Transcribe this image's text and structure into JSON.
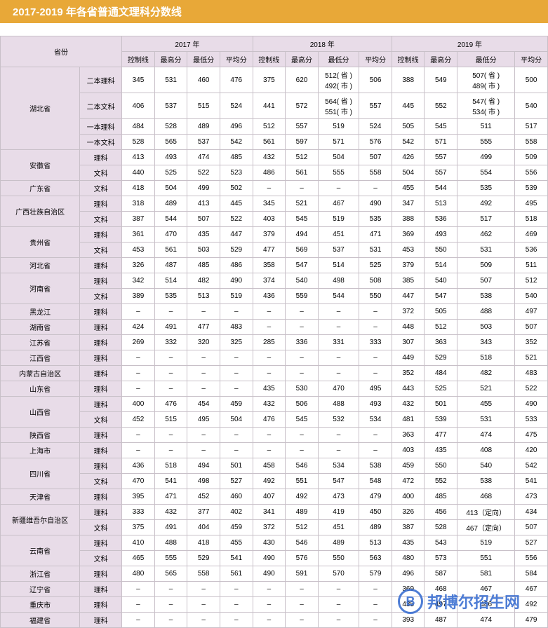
{
  "title": "2017-2019 年各省普通文理科分数线",
  "colors": {
    "header_bg": "#e8a838",
    "header_fg": "#ffffff",
    "th_bg": "#e8dce8",
    "border": "#c8c0c8",
    "watermark": "#3b6fd1"
  },
  "watermark": {
    "logo": "B",
    "text": "邦博尔招生网"
  },
  "table": {
    "year_groups": [
      "2017 年",
      "2018 年",
      "2019 年"
    ],
    "metric_cols": [
      "控制线",
      "最高分",
      "最低分",
      "平均分"
    ],
    "province_label": "省份",
    "provinces": [
      {
        "name": "湖北省",
        "rows": [
          {
            "cat": "二本理科",
            "v": [
              "345",
              "531",
              "460",
              "476",
              "375",
              "620",
              "512( 省 )\n492( 市 )",
              "506",
              "388",
              "549",
              "507( 省 )\n489( 市 )",
              "500"
            ]
          },
          {
            "cat": "二本文科",
            "v": [
              "406",
              "537",
              "515",
              "524",
              "441",
              "572",
              "564( 省 )\n551( 市 )",
              "557",
              "445",
              "552",
              "547( 省 )\n534( 市 )",
              "540"
            ]
          },
          {
            "cat": "一本理科",
            "v": [
              "484",
              "528",
              "489",
              "496",
              "512",
              "557",
              "519",
              "524",
              "505",
              "545",
              "511",
              "517"
            ]
          },
          {
            "cat": "一本文科",
            "v": [
              "528",
              "565",
              "537",
              "542",
              "561",
              "597",
              "571",
              "576",
              "542",
              "571",
              "555",
              "558"
            ]
          }
        ]
      },
      {
        "name": "安徽省",
        "rows": [
          {
            "cat": "理科",
            "v": [
              "413",
              "493",
              "474",
              "485",
              "432",
              "512",
              "504",
              "507",
              "426",
              "557",
              "499",
              "509"
            ]
          },
          {
            "cat": "文科",
            "v": [
              "440",
              "525",
              "522",
              "523",
              "486",
              "561",
              "555",
              "558",
              "504",
              "557",
              "554",
              "556"
            ]
          }
        ]
      },
      {
        "name": "广东省",
        "rows": [
          {
            "cat": "文科",
            "v": [
              "418",
              "504",
              "499",
              "502",
              "–",
              "–",
              "–",
              "–",
              "455",
              "544",
              "535",
              "539"
            ]
          }
        ]
      },
      {
        "name": "广西壮族自治区",
        "rows": [
          {
            "cat": "理科",
            "v": [
              "318",
              "489",
              "413",
              "445",
              "345",
              "521",
              "467",
              "490",
              "347",
              "513",
              "492",
              "495"
            ]
          },
          {
            "cat": "文科",
            "v": [
              "387",
              "544",
              "507",
              "522",
              "403",
              "545",
              "519",
              "535",
              "388",
              "536",
              "517",
              "518"
            ]
          }
        ]
      },
      {
        "name": "贵州省",
        "rows": [
          {
            "cat": "理科",
            "v": [
              "361",
              "470",
              "435",
              "447",
              "379",
              "494",
              "451",
              "471",
              "369",
              "493",
              "462",
              "469"
            ]
          },
          {
            "cat": "文科",
            "v": [
              "453",
              "561",
              "503",
              "529",
              "477",
              "569",
              "537",
              "531",
              "453",
              "550",
              "531",
              "536"
            ]
          }
        ]
      },
      {
        "name": "河北省",
        "rows": [
          {
            "cat": "理科",
            "v": [
              "326",
              "487",
              "485",
              "486",
              "358",
              "547",
              "514",
              "525",
              "379",
              "514",
              "509",
              "511"
            ]
          }
        ]
      },
      {
        "name": "河南省",
        "rows": [
          {
            "cat": "理科",
            "v": [
              "342",
              "514",
              "482",
              "490",
              "374",
              "540",
              "498",
              "508",
              "385",
              "540",
              "507",
              "512"
            ]
          },
          {
            "cat": "文科",
            "v": [
              "389",
              "535",
              "513",
              "519",
              "436",
              "559",
              "544",
              "550",
              "447",
              "547",
              "538",
              "540"
            ]
          }
        ]
      },
      {
        "name": "黑龙江",
        "rows": [
          {
            "cat": "理科",
            "v": [
              "–",
              "–",
              "–",
              "–",
              "–",
              "–",
              "–",
              "–",
              "372",
              "505",
              "488",
              "497"
            ]
          }
        ]
      },
      {
        "name": "湖南省",
        "rows": [
          {
            "cat": "理科",
            "v": [
              "424",
              "491",
              "477",
              "483",
              "–",
              "–",
              "–",
              "–",
              "448",
              "512",
              "503",
              "507"
            ]
          }
        ]
      },
      {
        "name": "江苏省",
        "rows": [
          {
            "cat": "理科",
            "v": [
              "269",
              "332",
              "320",
              "325",
              "285",
              "336",
              "331",
              "333",
              "307",
              "363",
              "343",
              "352"
            ]
          }
        ]
      },
      {
        "name": "江西省",
        "rows": [
          {
            "cat": "理科",
            "v": [
              "–",
              "–",
              "–",
              "–",
              "–",
              "–",
              "–",
              "–",
              "449",
              "529",
              "518",
              "521"
            ]
          }
        ]
      },
      {
        "name": "内蒙古自治区",
        "rows": [
          {
            "cat": "理科",
            "v": [
              "–",
              "–",
              "–",
              "–",
              "–",
              "–",
              "–",
              "–",
              "352",
              "484",
              "482",
              "483"
            ]
          }
        ]
      },
      {
        "name": "山东省",
        "rows": [
          {
            "cat": "理科",
            "v": [
              "–",
              "–",
              "–",
              "–",
              "435",
              "530",
              "470",
              "495",
              "443",
              "525",
              "521",
              "522"
            ]
          }
        ]
      },
      {
        "name": "山西省",
        "rows": [
          {
            "cat": "理科",
            "v": [
              "400",
              "476",
              "454",
              "459",
              "432",
              "506",
              "488",
              "493",
              "432",
              "501",
              "455",
              "490"
            ]
          },
          {
            "cat": "文科",
            "v": [
              "452",
              "515",
              "495",
              "504",
              "476",
              "545",
              "532",
              "534",
              "481",
              "539",
              "531",
              "533"
            ]
          }
        ]
      },
      {
        "name": "陕西省",
        "rows": [
          {
            "cat": "理科",
            "v": [
              "–",
              "–",
              "–",
              "–",
              "–",
              "–",
              "–",
              "–",
              "363",
              "477",
              "474",
              "475"
            ]
          }
        ]
      },
      {
        "name": "上海市",
        "rows": [
          {
            "cat": "理科",
            "v": [
              "–",
              "–",
              "–",
              "–",
              "–",
              "–",
              "–",
              "–",
              "403",
              "435",
              "408",
              "420"
            ]
          }
        ]
      },
      {
        "name": "四川省",
        "rows": [
          {
            "cat": "理科",
            "v": [
              "436",
              "518",
              "494",
              "501",
              "458",
              "546",
              "534",
              "538",
              "459",
              "550",
              "540",
              "542"
            ]
          },
          {
            "cat": "文科",
            "v": [
              "470",
              "541",
              "498",
              "527",
              "492",
              "551",
              "547",
              "548",
              "472",
              "552",
              "538",
              "541"
            ]
          }
        ]
      },
      {
        "name": "天津省",
        "rows": [
          {
            "cat": "理科",
            "v": [
              "395",
              "471",
              "452",
              "460",
              "407",
              "492",
              "473",
              "479",
              "400",
              "485",
              "468",
              "473"
            ]
          }
        ]
      },
      {
        "name": "新疆维吾尔自治区",
        "rows": [
          {
            "cat": "理科",
            "v": [
              "333",
              "432",
              "377",
              "402",
              "341",
              "489",
              "419",
              "450",
              "326",
              "456",
              "413（定向）",
              "434"
            ]
          },
          {
            "cat": "文科",
            "v": [
              "375",
              "491",
              "404",
              "459",
              "372",
              "512",
              "451",
              "489",
              "387",
              "528",
              "467（定向）",
              "507"
            ]
          }
        ]
      },
      {
        "name": "云南省",
        "rows": [
          {
            "cat": "理科",
            "v": [
              "410",
              "488",
              "418",
              "455",
              "430",
              "546",
              "489",
              "513",
              "435",
              "543",
              "519",
              "527"
            ]
          },
          {
            "cat": "文科",
            "v": [
              "465",
              "555",
              "529",
              "541",
              "490",
              "576",
              "550",
              "563",
              "480",
              "573",
              "551",
              "556"
            ]
          }
        ]
      },
      {
        "name": "浙江省",
        "rows": [
          {
            "cat": "理科",
            "v": [
              "480",
              "565",
              "558",
              "561",
              "490",
              "591",
              "570",
              "579",
              "496",
              "587",
              "581",
              "584"
            ]
          }
        ]
      },
      {
        "name": "辽宁省",
        "rows": [
          {
            "cat": "理科",
            "v": [
              "–",
              "–",
              "–",
              "–",
              "–",
              "–",
              "–",
              "–",
              "369",
              "468",
              "467",
              "467"
            ]
          }
        ]
      },
      {
        "name": "重庆市",
        "rows": [
          {
            "cat": "理科",
            "v": [
              "–",
              "–",
              "–",
              "–",
              "–",
              "–",
              "–",
              "–",
              "435",
              "497",
              "486",
              "492"
            ]
          }
        ]
      },
      {
        "name": "福建省",
        "rows": [
          {
            "cat": "理科",
            "v": [
              "–",
              "–",
              "–",
              "–",
              "–",
              "–",
              "–",
              "–",
              "393",
              "487",
              "474",
              "479"
            ]
          }
        ]
      }
    ]
  }
}
